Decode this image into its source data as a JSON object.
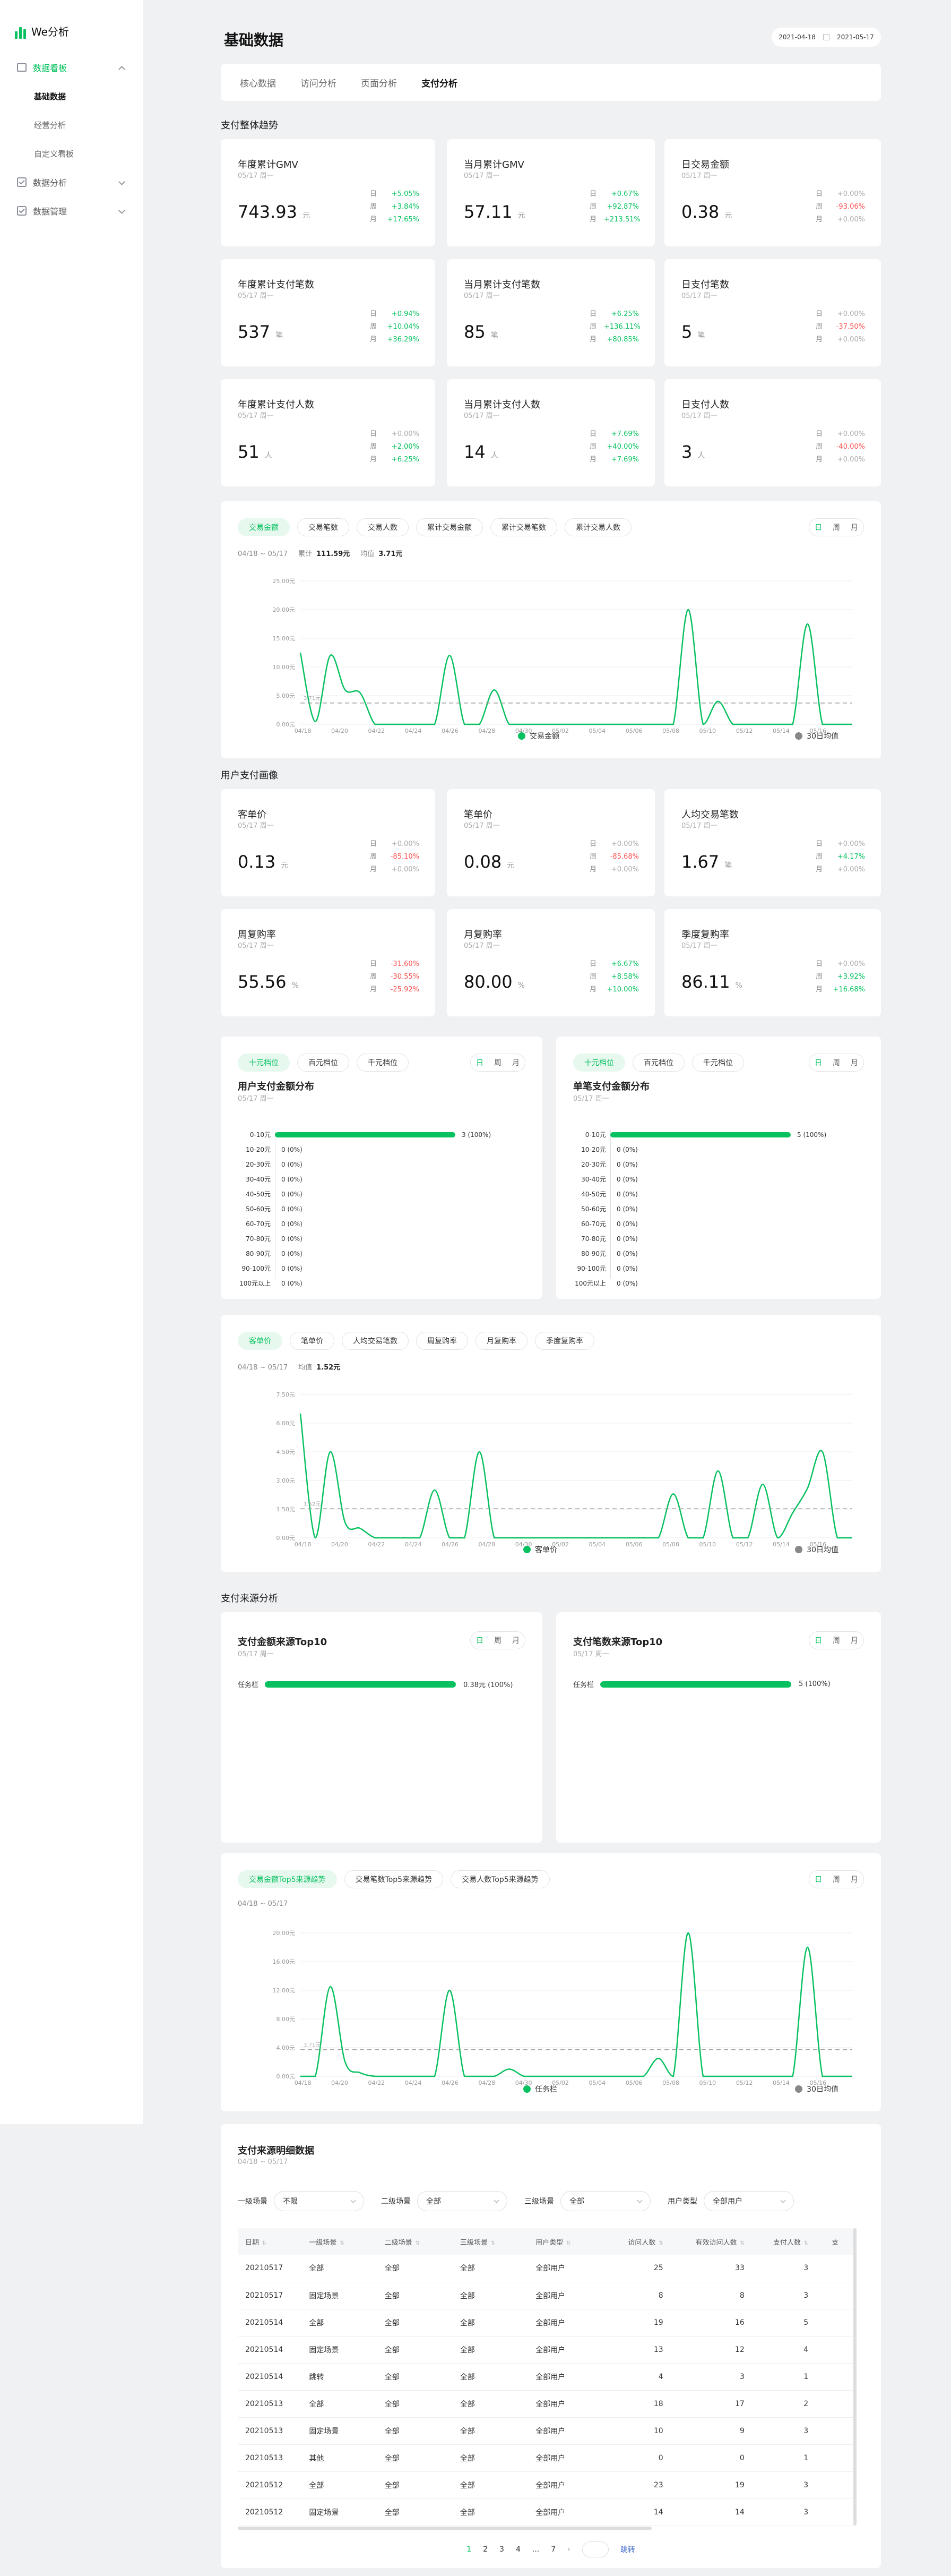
{
  "app": {
    "name": "We分析"
  },
  "sidebar": {
    "items": [
      {
        "label": "数据看板",
        "sub": [
          "基础数据",
          "经营分析",
          "自定义看板"
        ]
      },
      {
        "label": "数据分析"
      },
      {
        "label": "数据管理"
      }
    ]
  },
  "page": {
    "title": "基础数据",
    "date_start": "2021-04-18",
    "date_end": "2021-05-17"
  },
  "tabs": [
    "核心数据",
    "访问分析",
    "页面分析",
    "支付分析"
  ],
  "sections": {
    "trend": "支付整体趋势",
    "portrait": "用户支付画像",
    "source": "支付来源分析"
  },
  "cmp_labels": [
    "日",
    "周",
    "月"
  ],
  "kpis": [
    {
      "title": "年度累计GMV",
      "date": "05/17 周一",
      "value": "743.93",
      "unit": "元",
      "cmp": [
        "+5.05%",
        "+3.84%",
        "+17.65%"
      ],
      "cls": [
        "up",
        "up",
        "up"
      ]
    },
    {
      "title": "当月累计GMV",
      "date": "05/17 周一",
      "value": "57.11",
      "unit": "元",
      "cmp": [
        "+0.67%",
        "+92.87%",
        "+213.51%"
      ],
      "cls": [
        "up",
        "up",
        "up"
      ]
    },
    {
      "title": "日交易金额",
      "date": "05/17 周一",
      "value": "0.38",
      "unit": "元",
      "cmp": [
        "+0.00%",
        "-93.06%",
        "+0.00%"
      ],
      "cls": [
        "ze",
        "dn",
        "ze"
      ]
    },
    {
      "title": "年度累计支付笔数",
      "date": "05/17 周一",
      "value": "537",
      "unit": "笔",
      "cmp": [
        "+0.94%",
        "+10.04%",
        "+36.29%"
      ],
      "cls": [
        "up",
        "up",
        "up"
      ]
    },
    {
      "title": "当月累计支付笔数",
      "date": "05/17 周一",
      "value": "85",
      "unit": "笔",
      "cmp": [
        "+6.25%",
        "+136.11%",
        "+80.85%"
      ],
      "cls": [
        "up",
        "up",
        "up"
      ]
    },
    {
      "title": "日支付笔数",
      "date": "05/17 周一",
      "value": "5",
      "unit": "笔",
      "cmp": [
        "+0.00%",
        "-37.50%",
        "+0.00%"
      ],
      "cls": [
        "ze",
        "dn",
        "ze"
      ]
    },
    {
      "title": "年度累计支付人数",
      "date": "05/17 周一",
      "value": "51",
      "unit": "人",
      "cmp": [
        "+0.00%",
        "+2.00%",
        "+6.25%"
      ],
      "cls": [
        "ze",
        "up",
        "up"
      ]
    },
    {
      "title": "当月累计支付人数",
      "date": "05/17 周一",
      "value": "14",
      "unit": "人",
      "cmp": [
        "+7.69%",
        "+40.00%",
        "+7.69%"
      ],
      "cls": [
        "up",
        "up",
        "up"
      ]
    },
    {
      "title": "日支付人数",
      "date": "05/17 周一",
      "value": "3",
      "unit": "人",
      "cmp": [
        "+0.00%",
        "-40.00%",
        "+0.00%"
      ],
      "cls": [
        "ze",
        "dn",
        "ze"
      ]
    }
  ],
  "portrait_kpis": [
    {
      "title": "客单价",
      "date": "05/17 周一",
      "value": "0.13",
      "unit": "元",
      "cmp": [
        "+0.00%",
        "-85.10%",
        "+0.00%"
      ],
      "cls": [
        "ze",
        "dn",
        "ze"
      ]
    },
    {
      "title": "笔单价",
      "date": "05/17 周一",
      "value": "0.08",
      "unit": "元",
      "cmp": [
        "+0.00%",
        "-85.68%",
        "+0.00%"
      ],
      "cls": [
        "ze",
        "dn",
        "ze"
      ]
    },
    {
      "title": "人均交易笔数",
      "date": "05/17 周一",
      "value": "1.67",
      "unit": "笔",
      "cmp": [
        "+0.00%",
        "+4.17%",
        "+0.00%"
      ],
      "cls": [
        "ze",
        "up",
        "ze"
      ]
    },
    {
      "title": "周复购率",
      "date": "05/17 周一",
      "value": "55.56",
      "unit": "%",
      "cmp": [
        "-31.60%",
        "-30.55%",
        "-25.92%"
      ],
      "cls": [
        "dn",
        "dn",
        "dn"
      ]
    },
    {
      "title": "月复购率",
      "date": "05/17 周一",
      "value": "80.00",
      "unit": "%",
      "cmp": [
        "+6.67%",
        "+8.58%",
        "+10.00%"
      ],
      "cls": [
        "up",
        "up",
        "up"
      ]
    },
    {
      "title": "季度复购率",
      "date": "05/17 周一",
      "value": "86.11",
      "unit": "%",
      "cmp": [
        "+0.00%",
        "+3.92%",
        "+16.68%"
      ],
      "cls": [
        "ze",
        "up",
        "up"
      ]
    }
  ],
  "trend_card": {
    "chips": [
      "交易金额",
      "交易笔数",
      "交易人数",
      "累计交易金额",
      "累计交易笔数",
      "累计交易人数"
    ],
    "range": "04/18 ~ 05/17",
    "total_label": "累计",
    "total": "111.59元",
    "avg_label": "均值",
    "avg": "3.71元",
    "legend": [
      "交易金额",
      "30日均值"
    ]
  },
  "dist_cards": [
    {
      "chips": [
        "十元档位",
        "百元档位",
        "千元档位"
      ],
      "title": "用户支付金额分布",
      "date": "05/17 周一",
      "labels": [
        "0-10元",
        "10-20元",
        "20-30元",
        "30-40元",
        "40-50元",
        "50-60元",
        "60-70元",
        "70-80元",
        "80-90元",
        "90-100元",
        "100元以上"
      ],
      "values": [
        "3 (100%)",
        "0 (0%)",
        "0 (0%)",
        "0 (0%)",
        "0 (0%)",
        "0 (0%)",
        "0 (0%)",
        "0 (0%)",
        "0 (0%)",
        "0 (0%)",
        "0 (0%)"
      ],
      "fractions": [
        1,
        0,
        0,
        0,
        0,
        0,
        0,
        0,
        0,
        0,
        0
      ]
    },
    {
      "chips": [
        "十元档位",
        "百元档位",
        "千元档位"
      ],
      "title": "单笔支付金额分布",
      "date": "05/17 周一",
      "labels": [
        "0-10元",
        "10-20元",
        "20-30元",
        "30-40元",
        "40-50元",
        "50-60元",
        "60-70元",
        "70-80元",
        "80-90元",
        "90-100元",
        "100元以上"
      ],
      "values": [
        "5 (100%)",
        "0 (0%)",
        "0 (0%)",
        "0 (0%)",
        "0 (0%)",
        "0 (0%)",
        "0 (0%)",
        "0 (0%)",
        "0 (0%)",
        "0 (0%)",
        "0 (0%)"
      ],
      "fractions": [
        1,
        0,
        0,
        0,
        0,
        0,
        0,
        0,
        0,
        0,
        0
      ]
    }
  ],
  "unit_card": {
    "chips": [
      "客单价",
      "笔单价",
      "人均交易笔数",
      "周复购率",
      "月复购率",
      "季度复购率"
    ],
    "range": "04/18 ~ 05/17",
    "avg_label": "均值",
    "avg": "1.52元",
    "legend": [
      "客单价",
      "30日均值"
    ]
  },
  "top_cards": [
    {
      "title": "支付金额来源Top10",
      "date": "05/17 周一",
      "rows": [
        {
          "label": "任务栏",
          "value": "0.38元 (100%)",
          "fraction": 1
        }
      ]
    },
    {
      "title": "支付笔数来源Top10",
      "date": "05/17 周一",
      "rows": [
        {
          "label": "任务栏",
          "value": "5 (100%)",
          "fraction": 1
        }
      ]
    }
  ],
  "source_trend": {
    "chips": [
      "交易金额Top5来源趋势",
      "交易笔数Top5来源趋势",
      "交易人数Top5来源趋势"
    ],
    "range": "04/18 ~ 05/17",
    "legend": [
      "任务栏",
      "30日均值"
    ]
  },
  "detail": {
    "title": "支付来源明细数据",
    "range": "04/18 ~ 05/17",
    "filters": [
      {
        "label": "一级场景",
        "value": "不限"
      },
      {
        "label": "二级场景",
        "value": "全部"
      },
      {
        "label": "三级场景",
        "value": "全部"
      },
      {
        "label": "用户类型",
        "value": "全部用户"
      }
    ],
    "columns": [
      "日期",
      "一级场景",
      "二级场景",
      "三级场景",
      "用户类型",
      "访问人数",
      "有效访问人数",
      "支付人数",
      "支"
    ],
    "rows": [
      [
        "20210517",
        "全部",
        "全部",
        "全部",
        "全部用户",
        "25",
        "33",
        "3"
      ],
      [
        "20210517",
        "固定场景",
        "全部",
        "全部",
        "全部用户",
        "8",
        "8",
        "3"
      ],
      [
        "20210514",
        "全部",
        "全部",
        "全部",
        "全部用户",
        "19",
        "16",
        "5"
      ],
      [
        "20210514",
        "固定场景",
        "全部",
        "全部",
        "全部用户",
        "13",
        "12",
        "4"
      ],
      [
        "20210514",
        "跳转",
        "全部",
        "全部",
        "全部用户",
        "4",
        "3",
        "1"
      ],
      [
        "20210513",
        "全部",
        "全部",
        "全部",
        "全部用户",
        "18",
        "17",
        "2"
      ],
      [
        "20210513",
        "固定场景",
        "全部",
        "全部",
        "全部用户",
        "10",
        "9",
        "3"
      ],
      [
        "20210513",
        "其他",
        "全部",
        "全部",
        "全部用户",
        "0",
        "0",
        "1"
      ],
      [
        "20210512",
        "全部",
        "全部",
        "全部",
        "全部用户",
        "23",
        "19",
        "3"
      ],
      [
        "20210512",
        "固定场景",
        "全部",
        "全部",
        "全部用户",
        "14",
        "14",
        "3"
      ]
    ],
    "pager": [
      "1",
      "2",
      "3",
      "4",
      "...",
      "7"
    ],
    "jump": "跳转"
  },
  "chart_data": [
    {
      "type": "line",
      "title": "",
      "x_ticks": [
        "04/18",
        "04/20",
        "04/22",
        "04/24",
        "04/26",
        "04/28",
        "04/30",
        "05/02",
        "05/04",
        "05/06",
        "05/08",
        "05/10",
        "05/12",
        "05/14",
        "05/16"
      ],
      "y_ticks": [
        "0.00元",
        "5.00元",
        "10.00元",
        "15.00元",
        "20.00元",
        "25.00元"
      ],
      "ylim": [
        0,
        25
      ],
      "avg_label": "3.71元",
      "series": [
        {
          "name": "交易金额",
          "values": [
            12.5,
            0.5,
            12,
            6,
            5.5,
            0,
            0,
            0,
            0,
            0,
            12,
            0,
            0,
            6,
            0,
            0,
            0,
            0,
            0,
            0,
            0,
            0,
            0,
            0,
            0,
            0,
            20,
            0,
            4,
            0,
            0,
            0,
            0,
            0,
            17.5,
            0,
            0,
            0
          ]
        },
        {
          "name": "30日均值",
          "values": [
            3.71
          ]
        }
      ]
    },
    {
      "type": "line",
      "title": "",
      "x_ticks": [
        "04/18",
        "04/20",
        "04/22",
        "04/24",
        "04/26",
        "04/28",
        "04/30",
        "05/02",
        "05/04",
        "05/06",
        "05/08",
        "05/10",
        "05/12",
        "05/14",
        "05/16"
      ],
      "y_ticks": [
        "0.00元",
        "1.50元",
        "3.00元",
        "4.50元",
        "6.00元",
        "7.50元"
      ],
      "ylim": [
        0,
        7.5
      ],
      "avg_label": "1.52元",
      "series": [
        {
          "name": "客单价",
          "values": [
            6.5,
            0,
            4.5,
            0.8,
            0.5,
            0,
            0,
            0,
            0,
            2.5,
            0,
            0,
            4.5,
            0,
            0,
            0,
            0,
            0,
            0,
            0,
            0,
            0,
            0,
            0,
            0,
            2.3,
            0,
            0,
            3.5,
            0,
            0,
            2.8,
            0,
            1.3,
            2.6,
            4.5,
            0,
            0
          ]
        },
        {
          "name": "30日均值",
          "values": [
            1.52
          ]
        }
      ]
    },
    {
      "type": "line",
      "title": "",
      "x_ticks": [
        "04/18",
        "04/20",
        "04/22",
        "04/24",
        "04/26",
        "04/28",
        "04/30",
        "05/02",
        "05/04",
        "05/06",
        "05/08",
        "05/10",
        "05/12",
        "05/14",
        "05/16"
      ],
      "y_ticks": [
        "0.00元",
        "4.00元",
        "8.00元",
        "12.00元",
        "16.00元",
        "20.00元"
      ],
      "ylim": [
        0,
        20
      ],
      "avg_label": "3.71元",
      "series": [
        {
          "name": "任务栏",
          "values": [
            0,
            0,
            12.5,
            2,
            0.5,
            0,
            0,
            0,
            0,
            0,
            12,
            0,
            0,
            0,
            1,
            0,
            0,
            0,
            0,
            0,
            0,
            0,
            0,
            0,
            2.5,
            0,
            20,
            0,
            0,
            0,
            0,
            0,
            0,
            0,
            18,
            0,
            0,
            0
          ]
        },
        {
          "name": "30日均值",
          "values": [
            3.71
          ]
        }
      ]
    }
  ]
}
